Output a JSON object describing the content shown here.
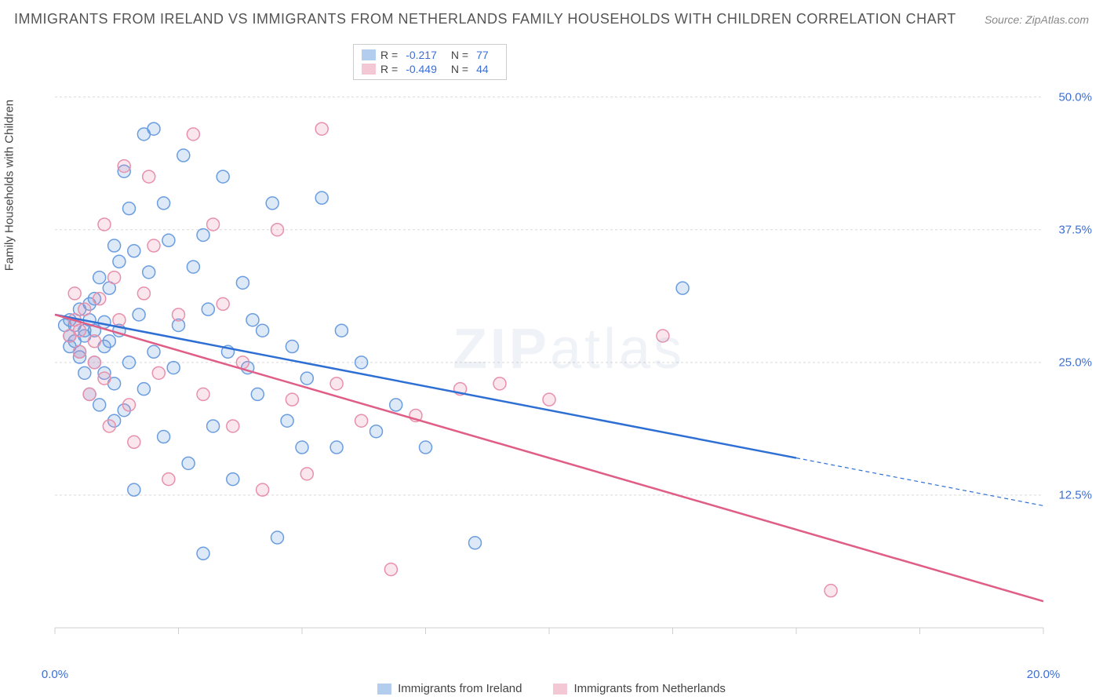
{
  "title": "IMMIGRANTS FROM IRELAND VS IMMIGRANTS FROM NETHERLANDS FAMILY HOUSEHOLDS WITH CHILDREN CORRELATION CHART",
  "source": "Source: ZipAtlas.com",
  "ylabel": "Family Households with Children",
  "watermark_a": "ZIP",
  "watermark_b": "atlas",
  "chart": {
    "type": "scatter",
    "xlim": [
      0,
      20
    ],
    "ylim": [
      0,
      55
    ],
    "x_tick_positions": [
      0,
      2.5,
      5,
      7.5,
      10,
      12.5,
      15,
      17.5,
      20
    ],
    "x_tick_labels": {
      "0": "0.0%",
      "20": "20.0%"
    },
    "y_gridlines": [
      12.5,
      25,
      37.5,
      50
    ],
    "y_tick_labels": {
      "12.5": "12.5%",
      "25": "25.0%",
      "37.5": "37.5%",
      "50": "50.0%"
    },
    "grid_color": "#d9d9d9",
    "axis_color": "#cfcfcf",
    "background": "#ffffff",
    "marker_radius": 8,
    "marker_stroke_width": 1.5,
    "marker_fill_opacity": 0.22,
    "trend_line_width": 2.5,
    "dash_pattern": "5,4"
  },
  "series": [
    {
      "key": "ireland",
      "label": "Immigrants from Ireland",
      "color": "#6a9de0",
      "line_color": "#2e6fd4",
      "R": "-0.217",
      "N": "77",
      "trend": {
        "x1": 0,
        "y1": 29.5,
        "x2_solid": 15,
        "y2_solid": 16,
        "x2_dash": 20,
        "y2_dash": 11.5
      },
      "points": [
        [
          0.2,
          28.5
        ],
        [
          0.3,
          26.5
        ],
        [
          0.3,
          29.0
        ],
        [
          0.4,
          27.0
        ],
        [
          0.4,
          28.5
        ],
        [
          0.5,
          25.5
        ],
        [
          0.5,
          30.0
        ],
        [
          0.5,
          26.0
        ],
        [
          0.6,
          28.0
        ],
        [
          0.6,
          24.0
        ],
        [
          0.6,
          27.5
        ],
        [
          0.7,
          30.5
        ],
        [
          0.7,
          29.0
        ],
        [
          0.7,
          22.0
        ],
        [
          0.8,
          28.0
        ],
        [
          0.8,
          31.0
        ],
        [
          0.8,
          25.0
        ],
        [
          0.9,
          33.0
        ],
        [
          0.9,
          21.0
        ],
        [
          1.0,
          28.8
        ],
        [
          1.0,
          26.5
        ],
        [
          1.0,
          24.0
        ],
        [
          1.1,
          32.0
        ],
        [
          1.1,
          27.0
        ],
        [
          1.2,
          36.0
        ],
        [
          1.2,
          23.0
        ],
        [
          1.2,
          19.5
        ],
        [
          1.3,
          28.0
        ],
        [
          1.3,
          34.5
        ],
        [
          1.4,
          43.0
        ],
        [
          1.4,
          20.5
        ],
        [
          1.5,
          39.5
        ],
        [
          1.5,
          25.0
        ],
        [
          1.6,
          13.0
        ],
        [
          1.6,
          35.5
        ],
        [
          1.7,
          29.5
        ],
        [
          1.8,
          46.5
        ],
        [
          1.8,
          22.5
        ],
        [
          1.9,
          33.5
        ],
        [
          2.0,
          47.0
        ],
        [
          2.0,
          26.0
        ],
        [
          2.2,
          40.0
        ],
        [
          2.2,
          18.0
        ],
        [
          2.3,
          36.5
        ],
        [
          2.4,
          24.5
        ],
        [
          2.5,
          28.5
        ],
        [
          2.6,
          44.5
        ],
        [
          2.7,
          15.5
        ],
        [
          2.8,
          34.0
        ],
        [
          3.0,
          37.0
        ],
        [
          3.0,
          7.0
        ],
        [
          3.1,
          30.0
        ],
        [
          3.2,
          19.0
        ],
        [
          3.4,
          42.5
        ],
        [
          3.5,
          26.0
        ],
        [
          3.6,
          14.0
        ],
        [
          3.8,
          32.5
        ],
        [
          3.9,
          24.5
        ],
        [
          4.0,
          29.0
        ],
        [
          4.1,
          22.0
        ],
        [
          4.2,
          28.0
        ],
        [
          4.4,
          40.0
        ],
        [
          4.5,
          8.5
        ],
        [
          4.7,
          19.5
        ],
        [
          4.8,
          26.5
        ],
        [
          5.0,
          17.0
        ],
        [
          5.1,
          23.5
        ],
        [
          5.4,
          40.5
        ],
        [
          5.7,
          17.0
        ],
        [
          5.8,
          28.0
        ],
        [
          6.2,
          25.0
        ],
        [
          6.5,
          18.5
        ],
        [
          6.9,
          21.0
        ],
        [
          7.5,
          17.0
        ],
        [
          8.5,
          8.0
        ],
        [
          12.7,
          32.0
        ],
        [
          0.3,
          27.5
        ]
      ]
    },
    {
      "key": "netherlands",
      "label": "Immigrants from Netherlands",
      "color": "#e890ab",
      "line_color": "#e05e86",
      "R": "-0.449",
      "N": "44",
      "trend": {
        "x1": 0,
        "y1": 29.5,
        "x2_solid": 20,
        "y2_solid": 2.5,
        "x2_dash": 20,
        "y2_dash": 2.5
      },
      "points": [
        [
          0.3,
          27.5
        ],
        [
          0.4,
          29.0
        ],
        [
          0.5,
          26.0
        ],
        [
          0.5,
          28.0
        ],
        [
          0.6,
          30.0
        ],
        [
          0.7,
          22.0
        ],
        [
          0.8,
          27.0
        ],
        [
          0.8,
          25.0
        ],
        [
          0.9,
          31.0
        ],
        [
          1.0,
          38.0
        ],
        [
          1.0,
          23.5
        ],
        [
          1.1,
          19.0
        ],
        [
          1.2,
          33.0
        ],
        [
          1.3,
          29.0
        ],
        [
          1.4,
          43.5
        ],
        [
          1.5,
          21.0
        ],
        [
          1.6,
          17.5
        ],
        [
          1.8,
          31.5
        ],
        [
          2.0,
          36.0
        ],
        [
          2.1,
          24.0
        ],
        [
          2.3,
          14.0
        ],
        [
          2.5,
          29.5
        ],
        [
          2.8,
          46.5
        ],
        [
          3.0,
          22.0
        ],
        [
          3.2,
          38.0
        ],
        [
          3.4,
          30.5
        ],
        [
          3.6,
          19.0
        ],
        [
          3.8,
          25.0
        ],
        [
          4.2,
          13.0
        ],
        [
          4.5,
          37.5
        ],
        [
          4.8,
          21.5
        ],
        [
          5.1,
          14.5
        ],
        [
          5.4,
          47.0
        ],
        [
          5.7,
          23.0
        ],
        [
          6.2,
          19.5
        ],
        [
          6.8,
          5.5
        ],
        [
          7.3,
          20.0
        ],
        [
          8.2,
          22.5
        ],
        [
          9.0,
          23.0
        ],
        [
          10.0,
          21.5
        ],
        [
          12.3,
          27.5
        ],
        [
          15.7,
          3.5
        ],
        [
          1.9,
          42.5
        ],
        [
          0.4,
          31.5
        ]
      ]
    }
  ],
  "legend_labels": {
    "R": "R =",
    "N": "N ="
  }
}
